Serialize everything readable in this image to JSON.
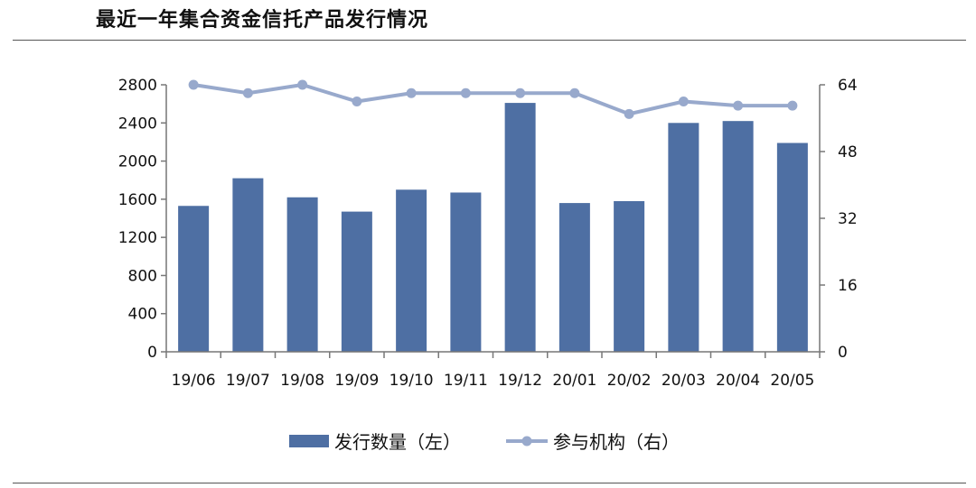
{
  "header": {
    "title": "最近一年集合资金信托产品发行情况"
  },
  "chart_data": {
    "type": "bar+line",
    "categories": [
      "19/06",
      "19/07",
      "19/08",
      "19/09",
      "19/10",
      "19/11",
      "19/12",
      "20/01",
      "20/02",
      "20/03",
      "20/04",
      "20/05"
    ],
    "series": [
      {
        "name": "发行数量（左）",
        "type": "bar",
        "axis": "left",
        "values": [
          1530,
          1820,
          1620,
          1470,
          1700,
          1670,
          2610,
          1560,
          1580,
          2400,
          2420,
          2190
        ]
      },
      {
        "name": "参与机构（右）",
        "type": "line",
        "axis": "right",
        "values": [
          64,
          62,
          64,
          60,
          62,
          62,
          62,
          62,
          57,
          60,
          59,
          59
        ]
      }
    ],
    "left_axis": {
      "ylim": [
        0,
        2800
      ],
      "ticks": [
        "0",
        "400",
        "800",
        "1200",
        "1600",
        "2000",
        "2400",
        "2800"
      ]
    },
    "right_axis": {
      "ylim": [
        0,
        64
      ],
      "ticks": [
        "0",
        "16",
        "32",
        "48",
        "64"
      ]
    },
    "legend": "bottom",
    "grid": false,
    "colors": {
      "bar": "#4e6fa3",
      "line": "#98a9cc",
      "axis": "#777777"
    }
  }
}
